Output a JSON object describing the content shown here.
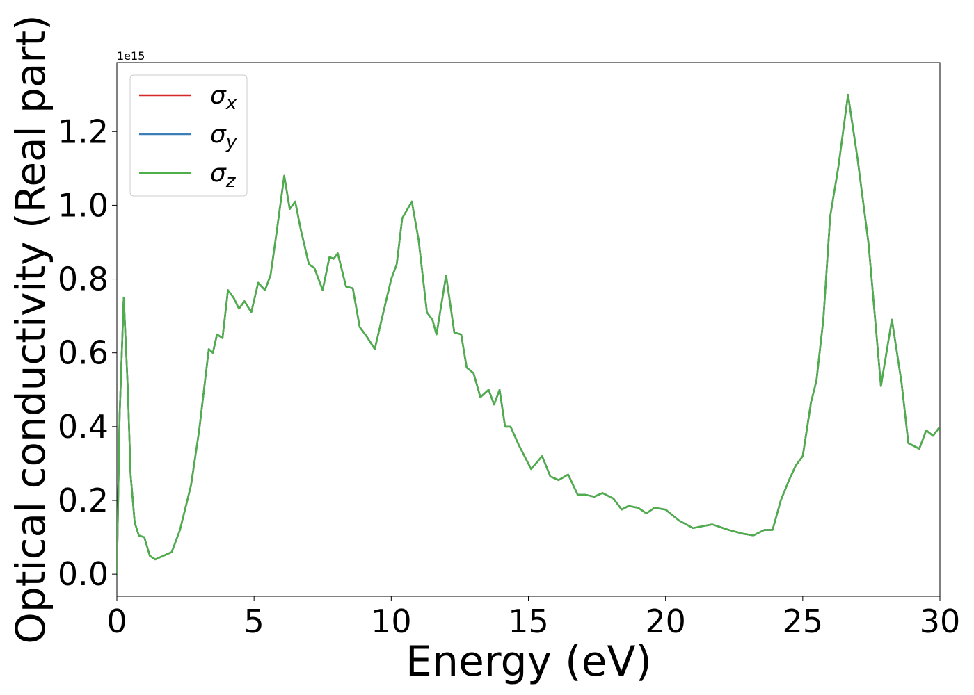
{
  "chart_data": {
    "type": "line",
    "x_label": "Energy (eV)",
    "y_label": "Optical conductivity (Real part)",
    "y_offset_label": "1e15",
    "x": [
      0,
      0.1,
      0.25,
      0.4,
      0.5,
      0.65,
      0.8,
      1.0,
      1.2,
      1.4,
      1.7,
      2.0,
      2.3,
      2.7,
      3.0,
      3.35,
      3.5,
      3.65,
      3.85,
      4.05,
      4.25,
      4.45,
      4.65,
      4.9,
      5.15,
      5.4,
      5.6,
      5.8,
      6.1,
      6.3,
      6.5,
      6.7,
      7.0,
      7.2,
      7.5,
      7.75,
      7.9,
      8.05,
      8.35,
      8.6,
      8.85,
      9.1,
      9.4,
      9.65,
      10.0,
      10.2,
      10.4,
      10.75,
      11.0,
      11.3,
      11.5,
      11.65,
      12.0,
      12.3,
      12.55,
      12.75,
      13.0,
      13.25,
      13.55,
      13.75,
      13.95,
      14.15,
      14.35,
      14.65,
      15.1,
      15.5,
      15.8,
      16.1,
      16.45,
      16.8,
      17.1,
      17.4,
      17.7,
      18.1,
      18.4,
      18.65,
      19.0,
      19.3,
      19.6,
      20.0,
      20.5,
      21.0,
      21.7,
      22.3,
      22.8,
      23.2,
      23.6,
      23.9,
      24.2,
      24.5,
      24.75,
      25.0,
      25.3,
      25.5,
      25.75,
      26.0,
      26.3,
      26.65,
      27.0,
      27.4,
      27.85,
      28.25,
      28.6,
      28.85,
      29.25,
      29.5,
      29.75,
      29.95,
      30
    ],
    "series": [
      {
        "name": "σx",
        "color": "#d62728",
        "values": [
          0.0,
          0.43,
          0.75,
          0.5,
          0.27,
          0.14,
          0.105,
          0.1,
          0.05,
          0.04,
          0.05,
          0.06,
          0.12,
          0.24,
          0.39,
          0.61,
          0.6,
          0.65,
          0.64,
          0.77,
          0.75,
          0.72,
          0.74,
          0.71,
          0.79,
          0.77,
          0.81,
          0.915,
          1.08,
          0.99,
          1.01,
          0.935,
          0.84,
          0.83,
          0.77,
          0.86,
          0.855,
          0.87,
          0.78,
          0.775,
          0.67,
          0.645,
          0.61,
          0.69,
          0.8,
          0.84,
          0.965,
          1.01,
          0.905,
          0.71,
          0.69,
          0.65,
          0.81,
          0.655,
          0.65,
          0.56,
          0.545,
          0.48,
          0.5,
          0.46,
          0.5,
          0.4,
          0.4,
          0.35,
          0.285,
          0.32,
          0.265,
          0.255,
          0.27,
          0.215,
          0.215,
          0.21,
          0.22,
          0.205,
          0.175,
          0.185,
          0.18,
          0.165,
          0.18,
          0.175,
          0.145,
          0.125,
          0.135,
          0.12,
          0.11,
          0.105,
          0.12,
          0.12,
          0.2,
          0.255,
          0.295,
          0.32,
          0.465,
          0.525,
          0.69,
          0.97,
          1.105,
          1.3,
          1.125,
          0.895,
          0.51,
          0.69,
          0.52,
          0.355,
          0.34,
          0.39,
          0.375,
          0.395,
          0.39
        ]
      },
      {
        "name": "σy",
        "color": "#3a7fb8",
        "values": [
          0.0,
          0.43,
          0.75,
          0.5,
          0.27,
          0.14,
          0.105,
          0.1,
          0.05,
          0.04,
          0.05,
          0.06,
          0.12,
          0.24,
          0.39,
          0.61,
          0.6,
          0.65,
          0.64,
          0.77,
          0.75,
          0.72,
          0.74,
          0.71,
          0.79,
          0.77,
          0.81,
          0.915,
          1.08,
          0.99,
          1.01,
          0.935,
          0.84,
          0.83,
          0.77,
          0.86,
          0.855,
          0.87,
          0.78,
          0.775,
          0.67,
          0.645,
          0.61,
          0.69,
          0.8,
          0.84,
          0.965,
          1.01,
          0.905,
          0.71,
          0.69,
          0.65,
          0.81,
          0.655,
          0.65,
          0.56,
          0.545,
          0.48,
          0.5,
          0.46,
          0.5,
          0.4,
          0.4,
          0.35,
          0.285,
          0.32,
          0.265,
          0.255,
          0.27,
          0.215,
          0.215,
          0.21,
          0.22,
          0.205,
          0.175,
          0.185,
          0.18,
          0.165,
          0.18,
          0.175,
          0.145,
          0.125,
          0.135,
          0.12,
          0.11,
          0.105,
          0.12,
          0.12,
          0.2,
          0.255,
          0.295,
          0.32,
          0.465,
          0.525,
          0.69,
          0.97,
          1.105,
          1.3,
          1.125,
          0.895,
          0.51,
          0.69,
          0.52,
          0.355,
          0.34,
          0.39,
          0.375,
          0.395,
          0.39
        ]
      },
      {
        "name": "σz",
        "color": "#4daf4a",
        "values": [
          0.0,
          0.43,
          0.75,
          0.5,
          0.27,
          0.14,
          0.105,
          0.1,
          0.05,
          0.04,
          0.05,
          0.06,
          0.12,
          0.24,
          0.39,
          0.61,
          0.6,
          0.65,
          0.64,
          0.77,
          0.75,
          0.72,
          0.74,
          0.71,
          0.79,
          0.77,
          0.81,
          0.915,
          1.08,
          0.99,
          1.01,
          0.935,
          0.84,
          0.83,
          0.77,
          0.86,
          0.855,
          0.87,
          0.78,
          0.775,
          0.67,
          0.645,
          0.61,
          0.69,
          0.8,
          0.84,
          0.965,
          1.01,
          0.905,
          0.71,
          0.69,
          0.65,
          0.81,
          0.655,
          0.65,
          0.56,
          0.545,
          0.48,
          0.5,
          0.46,
          0.5,
          0.4,
          0.4,
          0.35,
          0.285,
          0.32,
          0.265,
          0.255,
          0.27,
          0.215,
          0.215,
          0.21,
          0.22,
          0.205,
          0.175,
          0.185,
          0.18,
          0.165,
          0.18,
          0.175,
          0.145,
          0.125,
          0.135,
          0.12,
          0.11,
          0.105,
          0.12,
          0.12,
          0.2,
          0.255,
          0.295,
          0.32,
          0.465,
          0.525,
          0.69,
          0.97,
          1.105,
          1.3,
          1.125,
          0.895,
          0.51,
          0.69,
          0.52,
          0.355,
          0.34,
          0.39,
          0.375,
          0.395,
          0.39
        ]
      }
    ],
    "xlim": [
      0,
      30
    ],
    "xticks": [
      0,
      5,
      10,
      15,
      20,
      25,
      30
    ],
    "ylim": [
      -0.06,
      1.387
    ],
    "yticks": [
      {
        "value": 0,
        "label": "0.0"
      },
      0.2,
      0.4,
      0.6,
      0.8,
      {
        "value": 1,
        "label": "1.0"
      },
      1.2
    ],
    "grid": false,
    "legend": "upper left"
  }
}
